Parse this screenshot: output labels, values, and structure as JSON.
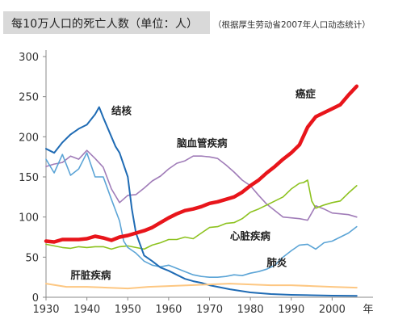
{
  "title": "每10万人口的死亡人数（单位：人）",
  "subtitle": "（根据厚生劳动省2007年人口动态统计）",
  "chart_data": {
    "type": "line",
    "xlabel": "年",
    "ylabel": "",
    "xlim": [
      1930,
      2010
    ],
    "ylim": [
      0,
      300
    ],
    "x_ticks": [
      1930,
      1940,
      1950,
      1960,
      1970,
      1980,
      1990,
      2000
    ],
    "y_ticks": [
      0,
      50,
      100,
      150,
      200,
      250,
      300
    ],
    "grid": false,
    "series": [
      {
        "name": "癌症",
        "color": "#e8151b",
        "width": 4.5,
        "label_style": "bold",
        "x": [
          1930,
          1932,
          1934,
          1936,
          1938,
          1940,
          1942,
          1944,
          1946,
          1948,
          1950,
          1952,
          1954,
          1956,
          1958,
          1960,
          1962,
          1964,
          1966,
          1968,
          1970,
          1972,
          1974,
          1976,
          1978,
          1980,
          1982,
          1984,
          1986,
          1988,
          1990,
          1992,
          1994,
          1996,
          1998,
          2000,
          2002,
          2004,
          2006
        ],
        "values": [
          70,
          69,
          72,
          72,
          72,
          73,
          76,
          74,
          71,
          75,
          77,
          80,
          83,
          87,
          93,
          99,
          104,
          108,
          110,
          113,
          117,
          119,
          122,
          125,
          131,
          139,
          146,
          155,
          163,
          172,
          180,
          190,
          212,
          225,
          230,
          235,
          240,
          252,
          263
        ]
      },
      {
        "name": "结核",
        "color": "#1f6bb4",
        "width": 2,
        "x": [
          1930,
          1932,
          1934,
          1936,
          1938,
          1940,
          1942,
          1943,
          1944,
          1947,
          1948,
          1950,
          1951,
          1952,
          1954,
          1956,
          1958,
          1960,
          1962,
          1964,
          1966,
          1968,
          1970,
          1972,
          1975,
          1980,
          1985,
          1990,
          1995,
          2000,
          2006
        ],
        "values": [
          185,
          180,
          193,
          203,
          210,
          215,
          228,
          237,
          224,
          188,
          180,
          150,
          110,
          80,
          52,
          45,
          37,
          33,
          28,
          23,
          20,
          18,
          15,
          13,
          10,
          6,
          4,
          3,
          2.5,
          2,
          1.8
        ]
      },
      {
        "name": "脑血管疾病",
        "color": "#a07cb8",
        "width": 1.6,
        "x": [
          1930,
          1932,
          1934,
          1936,
          1938,
          1940,
          1942,
          1944,
          1946,
          1948,
          1950,
          1952,
          1954,
          1956,
          1958,
          1960,
          1962,
          1964,
          1966,
          1968,
          1970,
          1972,
          1974,
          1976,
          1978,
          1980,
          1982,
          1984,
          1986,
          1988,
          1990,
          1992,
          1994,
          1996,
          1998,
          2000,
          2002,
          2004,
          2006
        ],
        "values": [
          163,
          166,
          168,
          176,
          172,
          183,
          173,
          162,
          135,
          118,
          127,
          128,
          136,
          145,
          151,
          160,
          167,
          170,
          176,
          176,
          175,
          173,
          165,
          156,
          146,
          139,
          127,
          116,
          108,
          100,
          99,
          98,
          96,
          114,
          110,
          105,
          104,
          103,
          100
        ]
      },
      {
        "name": "心脏疾病",
        "color": "#8dc21f",
        "width": 1.6,
        "x": [
          1930,
          1932,
          1934,
          1936,
          1938,
          1940,
          1942,
          1944,
          1946,
          1948,
          1950,
          1952,
          1954,
          1956,
          1958,
          1960,
          1962,
          1964,
          1966,
          1968,
          1970,
          1972,
          1974,
          1976,
          1978,
          1980,
          1982,
          1984,
          1986,
          1988,
          1990,
          1992,
          1993,
          1994,
          1995,
          1996,
          1998,
          2000,
          2002,
          2004,
          2006
        ],
        "values": [
          66,
          64,
          62,
          61,
          63,
          62,
          63,
          63,
          60,
          63,
          64,
          62,
          60,
          65,
          68,
          72,
          72,
          75,
          73,
          80,
          87,
          88,
          92,
          93,
          98,
          106,
          110,
          115,
          120,
          125,
          135,
          142,
          143,
          146,
          120,
          111,
          115,
          118,
          120,
          130,
          139
        ]
      },
      {
        "name": "肺炎",
        "color": "#5ba4d6",
        "width": 1.6,
        "x": [
          1930,
          1932,
          1934,
          1936,
          1938,
          1940,
          1942,
          1944,
          1946,
          1948,
          1949,
          1950,
          1952,
          1954,
          1956,
          1958,
          1960,
          1962,
          1964,
          1966,
          1968,
          1970,
          1972,
          1974,
          1976,
          1978,
          1980,
          1982,
          1984,
          1986,
          1988,
          1990,
          1992,
          1994,
          1996,
          1998,
          2000,
          2002,
          2004,
          2006
        ],
        "values": [
          172,
          155,
          178,
          152,
          160,
          180,
          150,
          150,
          122,
          95,
          70,
          62,
          55,
          45,
          40,
          38,
          40,
          36,
          32,
          28,
          26,
          25,
          25,
          26,
          28,
          27,
          30,
          32,
          35,
          40,
          50,
          58,
          65,
          66,
          60,
          68,
          70,
          75,
          80,
          88
        ]
      },
      {
        "name": "肝脏疾病",
        "color": "#fdc782",
        "width": 2,
        "x": [
          1930,
          1935,
          1940,
          1945,
          1950,
          1955,
          1960,
          1965,
          1970,
          1975,
          1980,
          1985,
          1990,
          1995,
          2000,
          2006
        ],
        "values": [
          17,
          13,
          13,
          12,
          11,
          13,
          14,
          15,
          16,
          17,
          16,
          15,
          15,
          14,
          13,
          12
        ]
      }
    ],
    "labels": [
      {
        "text": "结核",
        "x": 1946,
        "y": 228
      },
      {
        "text": "脑血管疾病",
        "x": 1962,
        "y": 188
      },
      {
        "text": "癌症",
        "x": 1991,
        "y": 249
      },
      {
        "text": "心脏疾病",
        "x": 1975,
        "y": 72
      },
      {
        "text": "肺炎",
        "x": 1984,
        "y": 39
      },
      {
        "text": "肝脏疾病",
        "x": 1936,
        "y": 23
      }
    ]
  }
}
